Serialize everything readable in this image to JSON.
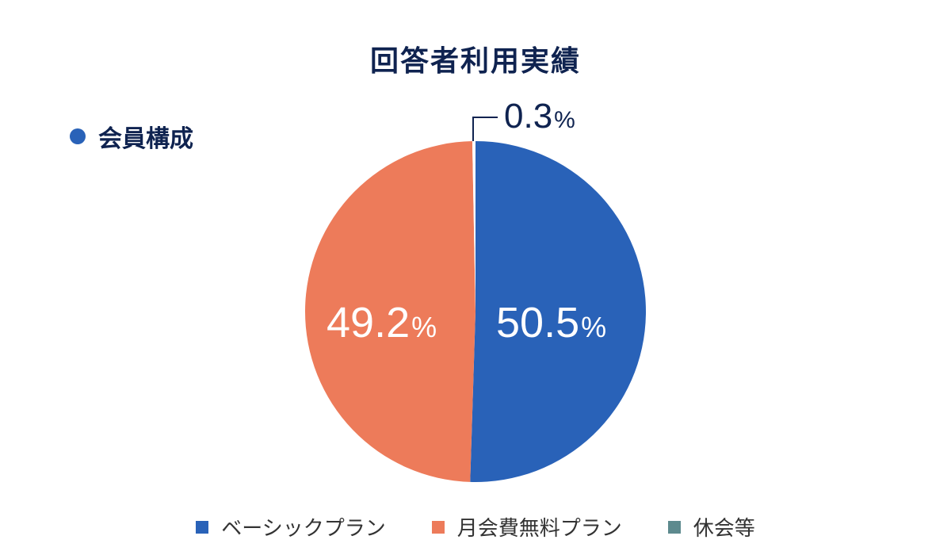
{
  "title": "回答者利用実績",
  "section_label": "会員構成",
  "colors": {
    "basic": "#2962b8",
    "free": "#ed7b5a",
    "rest": "#5d8a8e",
    "title": "#0f2350"
  },
  "labels": {
    "basic_value": "50.5",
    "free_value": "49.2",
    "rest_value": "0.3",
    "percent_symbol": "%"
  },
  "legend": [
    {
      "label": "ベーシックプラン",
      "color": "#2962b8"
    },
    {
      "label": "月会費無料プラン",
      "color": "#ed7b5a"
    },
    {
      "label": "休会等",
      "color": "#5d8a8e"
    }
  ],
  "chart_data": {
    "type": "pie",
    "title": "回答者利用実績",
    "subtitle": "会員構成",
    "categories": [
      "ベーシックプラン",
      "月会費無料プラン",
      "休会等"
    ],
    "values": [
      50.5,
      49.2,
      0.3
    ],
    "unit": "%",
    "start_angle": "top, clockwise",
    "legend_position": "bottom"
  }
}
